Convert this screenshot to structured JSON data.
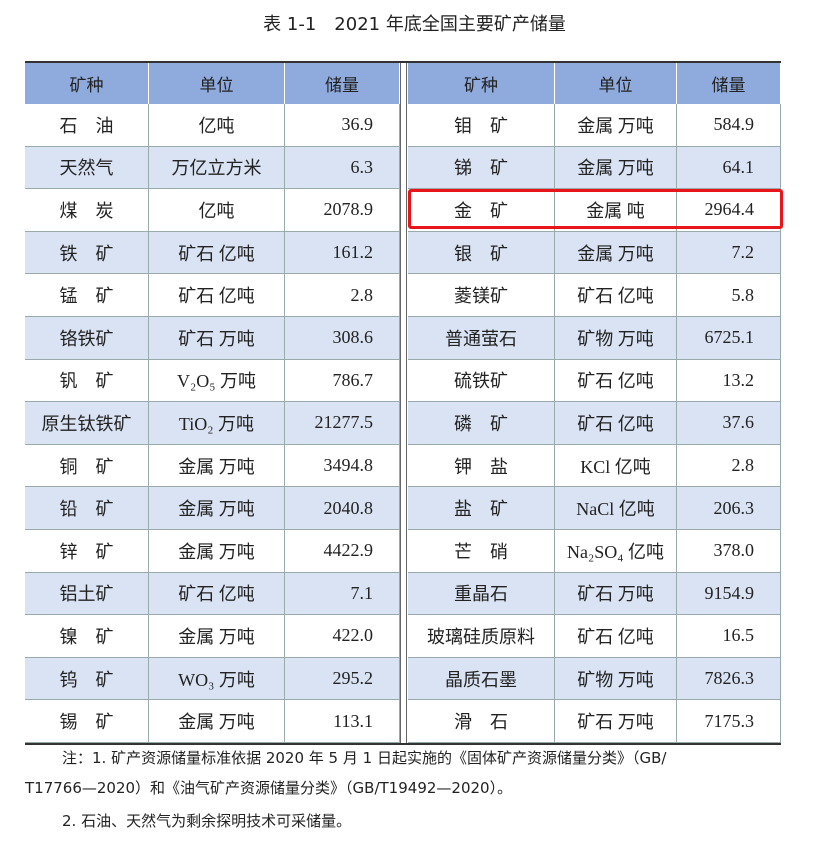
{
  "title": "表 1-1　2021 年底全国主要矿产储量",
  "table": {
    "columns": [
      "矿种",
      "单位",
      "储量",
      "矿种",
      "单位",
      "储量"
    ],
    "rows": [
      [
        "石　油",
        "亿吨",
        "36.9",
        "钼　矿",
        "金属 万吨",
        "584.9"
      ],
      [
        "天然气",
        "万亿立方米",
        "6.3",
        "锑　矿",
        "金属 万吨",
        "64.1"
      ],
      [
        "煤　炭",
        "亿吨",
        "2078.9",
        "金　矿",
        "金属 吨",
        "2964.4"
      ],
      [
        "铁　矿",
        "矿石 亿吨",
        "161.2",
        "银　矿",
        "金属 万吨",
        "7.2"
      ],
      [
        "锰　矿",
        "矿石 亿吨",
        "2.8",
        "菱镁矿",
        "矿石 亿吨",
        "5.8"
      ],
      [
        "铬铁矿",
        "矿石 万吨",
        "308.6",
        "普通萤石",
        "矿物 万吨",
        "6725.1"
      ],
      [
        "钒　矿",
        "V₂O₅ 万吨",
        "786.7",
        "硫铁矿",
        "矿石 亿吨",
        "13.2"
      ],
      [
        "原生钛铁矿",
        "TiO₂ 万吨",
        "21277.5",
        "磷　矿",
        "矿石 亿吨",
        "37.6"
      ],
      [
        "铜　矿",
        "金属 万吨",
        "3494.8",
        "钾　盐",
        "KCl 亿吨",
        "2.8"
      ],
      [
        "铅　矿",
        "金属 万吨",
        "2040.8",
        "盐　矿",
        "NaCl 亿吨",
        "206.3"
      ],
      [
        "锌　矿",
        "金属 万吨",
        "4422.9",
        "芒　硝",
        "Na₂SO₄ 亿吨",
        "378.0"
      ],
      [
        "铝土矿",
        "矿石 亿吨",
        "7.1",
        "重晶石",
        "矿石 万吨",
        "9154.9"
      ],
      [
        "镍　矿",
        "金属 万吨",
        "422.0",
        "玻璃硅质原料",
        "矿石 亿吨",
        "16.5"
      ],
      [
        "钨　矿",
        "WO₃ 万吨",
        "295.2",
        "晶质石墨",
        "矿物 万吨",
        "7826.3"
      ],
      [
        "锡　矿",
        "金属 万吨",
        "113.1",
        "滑　石",
        "矿石 万吨",
        "7175.3"
      ]
    ]
  },
  "notes": [
    "注：1. 矿产资源储量标准依据 2020 年 5 月 1 日起实施的《固体矿产资源储量分类》（GB/",
    "T17766—2020）和《油气矿产资源储量分类》（GB/T19492—2020）。",
    "2. 石油、天然气为剩余探明技术可采储量。"
  ]
}
